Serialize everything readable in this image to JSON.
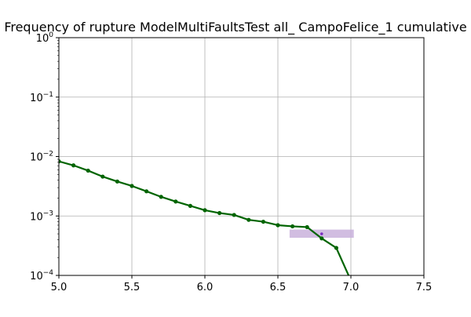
{
  "chart_data": {
    "type": "line",
    "title": "Frequency of rupture ModelMultiFaultsTest all_ CampoFelice_1 cumulative",
    "xlabel": "",
    "ylabel": "",
    "xlim": [
      5.0,
      7.5
    ],
    "ylim": [
      0.0001,
      1
    ],
    "yscale": "log",
    "grid": true,
    "x_ticks": [
      5.0,
      5.5,
      6.0,
      6.5,
      7.0,
      7.5
    ],
    "x_tick_labels": [
      "5.0",
      "5.5",
      "6.0",
      "6.5",
      "7.0",
      "7.5"
    ],
    "y_ticks": [
      0.0001,
      0.001,
      0.01,
      0.1,
      1
    ],
    "y_tick_labels": [
      {
        "base": "10",
        "exp": "−4"
      },
      {
        "base": "10",
        "exp": "−3"
      },
      {
        "base": "10",
        "exp": "−2"
      },
      {
        "base": "10",
        "exp": "−1"
      },
      {
        "base": "10",
        "exp": "0"
      }
    ],
    "series": [
      {
        "color": "#006400",
        "x": [
          5.0,
          5.1,
          5.2,
          5.3,
          5.4,
          5.5,
          5.6,
          5.7,
          5.8,
          5.9,
          6.0,
          6.1,
          6.2,
          6.3,
          6.4,
          6.5,
          6.6,
          6.7,
          6.8,
          6.9,
          7.0
        ],
        "y": [
          0.0083,
          0.0071,
          0.0058,
          0.0046,
          0.0038,
          0.0032,
          0.0026,
          0.0021,
          0.00175,
          0.00148,
          0.00125,
          0.00112,
          0.00104,
          0.00086,
          0.0008,
          0.0007,
          0.00067,
          0.00065,
          0.00042,
          0.00029,
          8.2e-05
        ]
      }
    ],
    "observed": {
      "color": "#7b2cbf",
      "band_color": "#c9b2dc",
      "x": 6.8,
      "y": 0.0005,
      "x_range": [
        6.58,
        7.02
      ],
      "y_range": [
        0.00043,
        0.00059
      ]
    }
  }
}
